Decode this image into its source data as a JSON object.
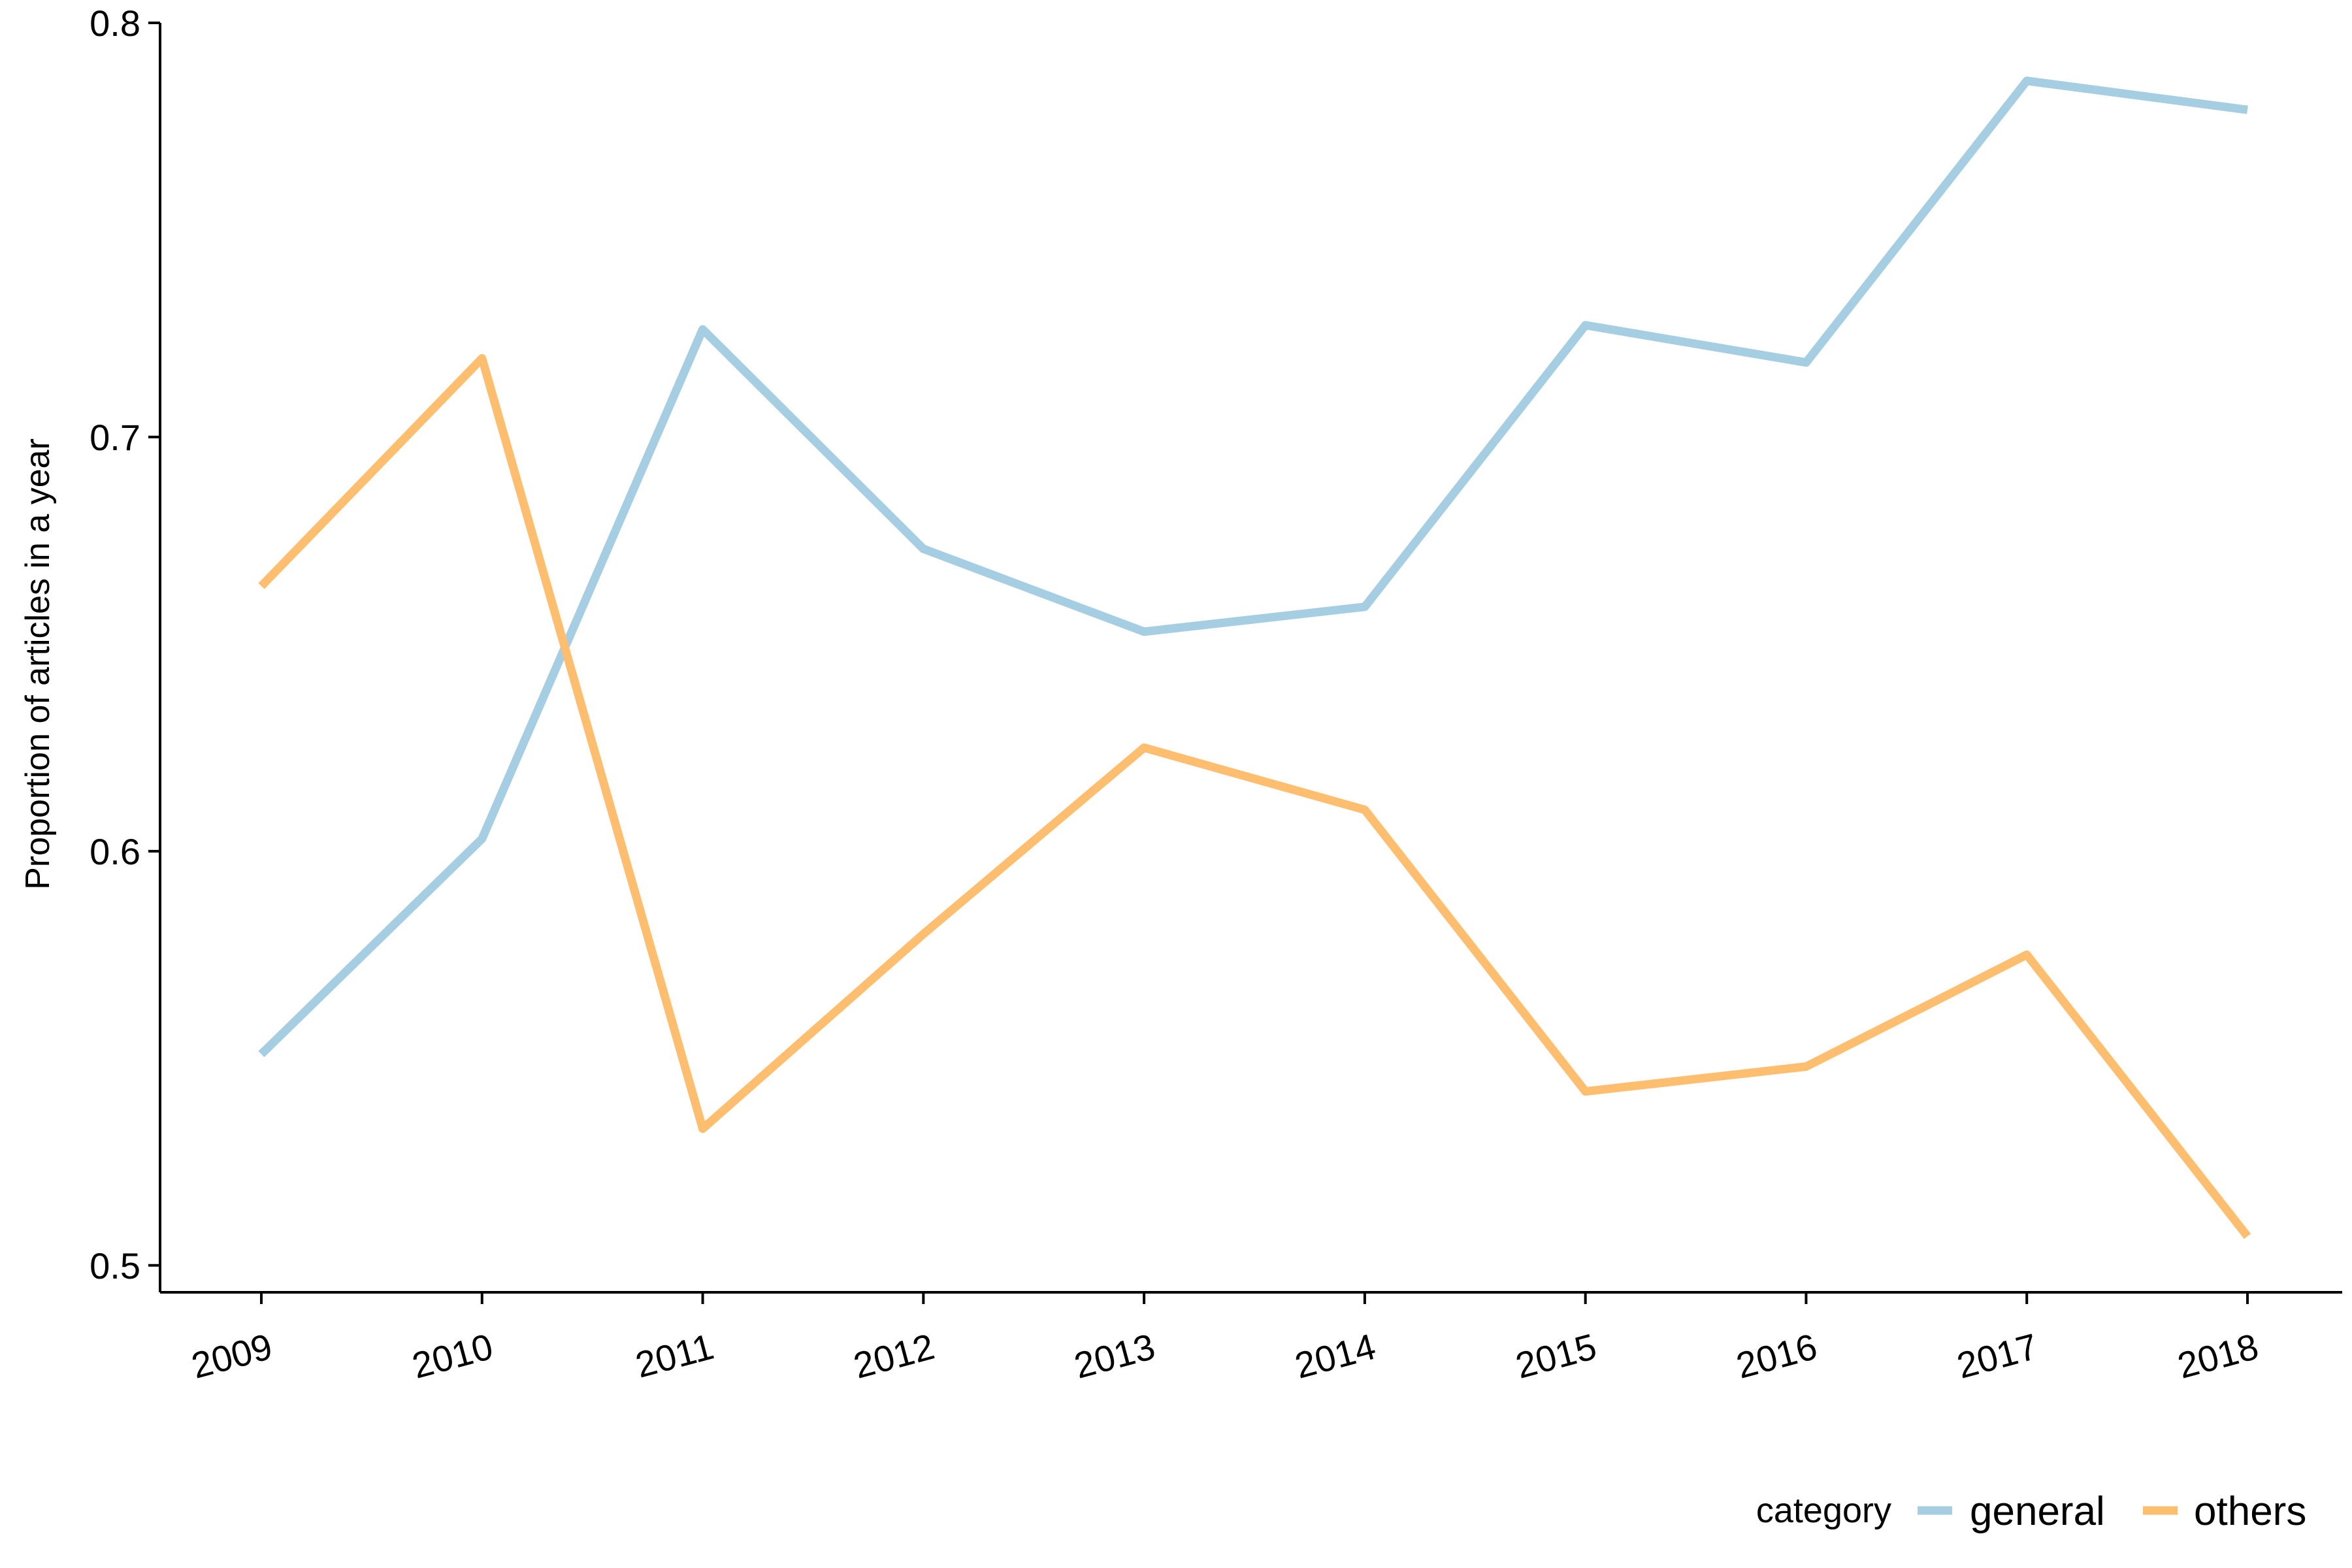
{
  "chart_data": {
    "type": "line",
    "title": "",
    "xlabel": "",
    "ylabel": "Proportion of articles in a year",
    "x": [
      "2009",
      "2010",
      "2011",
      "2012",
      "2013",
      "2014",
      "2015",
      "2016",
      "2017",
      "2018"
    ],
    "ylim": [
      0.4935,
      0.8
    ],
    "yticks": [
      0.5,
      0.6,
      0.7,
      0.8
    ],
    "ytick_labels": [
      "0.5",
      "0.6",
      "0.7",
      "0.8"
    ],
    "grid": false,
    "series": [
      {
        "name": "general",
        "color": "#a6cee3",
        "values": [
          0.551,
          0.603,
          0.726,
          0.673,
          0.653,
          0.659,
          0.727,
          0.718,
          0.786,
          0.779
        ]
      },
      {
        "name": "others",
        "color": "#fdbf6f",
        "values": [
          0.664,
          0.719,
          0.533,
          0.58,
          0.625,
          0.61,
          0.542,
          0.548,
          0.575,
          0.507
        ]
      }
    ],
    "legend": {
      "title": "category",
      "position": "bottom-right"
    }
  }
}
